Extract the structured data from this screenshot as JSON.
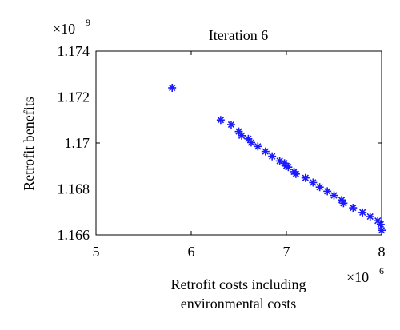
{
  "chart_data": {
    "type": "scatter",
    "title": "Iteration 6",
    "xlabel_line1": "Retrofit costs including",
    "xlabel_line2": "environmental costs",
    "ylabel": "Retrofit benefits",
    "x_multiplier": {
      "base": "×10",
      "exp": "6"
    },
    "y_multiplier": {
      "base": "×10",
      "exp": "9"
    },
    "xlim": [
      5,
      8
    ],
    "ylim": [
      1.166,
      1.174
    ],
    "x_ticks": [
      "5",
      "6",
      "7",
      "8"
    ],
    "y_ticks": [
      "1.166",
      "1.168",
      "1.17",
      "1.172",
      "1.174"
    ],
    "grid": false,
    "marker": "asterisk",
    "marker_color": "#1a1aff",
    "series": [
      {
        "x": [
          5.8,
          6.31,
          6.42,
          6.5,
          6.53,
          6.6,
          6.63,
          6.7,
          6.78,
          6.85,
          6.93,
          6.98,
          7.0,
          7.02,
          7.08,
          7.1,
          7.2,
          7.28,
          7.35,
          7.43,
          7.5,
          7.58,
          7.6,
          7.7,
          7.8,
          7.88,
          7.96,
          7.99,
          8.0
        ],
        "y": [
          1.1724,
          1.171,
          1.1708,
          1.1705,
          1.17032,
          1.17018,
          1.17002,
          1.16985,
          1.16963,
          1.16942,
          1.16922,
          1.16912,
          1.169,
          1.16895,
          1.16875,
          1.16865,
          1.16848,
          1.16828,
          1.16808,
          1.1679,
          1.16772,
          1.16752,
          1.16738,
          1.16718,
          1.16698,
          1.1668,
          1.16662,
          1.16646,
          1.1662
        ]
      }
    ]
  }
}
